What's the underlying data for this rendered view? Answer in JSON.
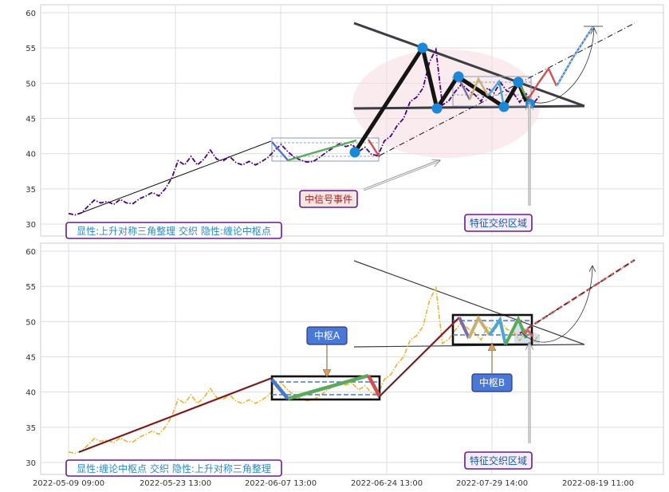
{
  "chart_data": [
    {
      "type": "line",
      "panel": "top",
      "ylim": [
        28,
        61
      ],
      "yticks": [
        30,
        35,
        40,
        45,
        50,
        55,
        60
      ],
      "grid": true,
      "price_series": {
        "color": "#4b0082",
        "values": [
          31.5,
          31.3,
          31.6,
          32.5,
          33.4,
          33.0,
          33.2,
          32.8,
          33.5,
          33.0,
          32.9,
          33.6,
          34.0,
          34.5,
          34.0,
          35.0,
          36.5,
          39.0,
          38.4,
          39.6,
          38.4,
          39.2,
          40.5,
          39.2,
          39.0,
          39.6,
          38.7,
          38.4,
          38.9,
          38.4,
          38.9,
          39.5,
          40.5,
          41.3,
          40.3,
          39.5,
          39.1,
          38.8,
          38.9,
          39.5,
          40.2,
          40.8,
          41.4,
          41.0,
          41.3,
          40.3,
          40.9,
          39.9,
          39.7,
          41.8,
          42.5,
          44.0,
          45.0,
          47.4,
          48.0,
          49.3,
          53.0,
          54.8,
          46.9,
          47.5,
          48.8,
          49.9,
          49.0,
          48.4,
          47.4,
          49.3,
          48.6,
          50.1,
          48.9,
          48.6,
          47.3,
          48.5,
          47.0,
          48.1
        ]
      },
      "annotations": {
        "signal_event": "中信号事件",
        "feature_zone": "特征交织区域",
        "caption": "显性:上升对称三角整理 交织 隐性:缠论中枢点"
      }
    },
    {
      "type": "line",
      "panel": "bottom",
      "ylim": [
        28,
        61
      ],
      "yticks": [
        30,
        35,
        40,
        45,
        50,
        55,
        60
      ],
      "grid": true,
      "price_series": {
        "color": "#f0b030",
        "values": [
          31.5,
          31.3,
          31.6,
          32.5,
          33.4,
          33.0,
          33.2,
          32.8,
          33.5,
          33.0,
          32.9,
          33.6,
          34.0,
          34.5,
          34.0,
          35.0,
          36.5,
          39.0,
          38.4,
          39.6,
          38.4,
          39.2,
          40.5,
          39.2,
          39.0,
          39.6,
          38.7,
          38.4,
          38.9,
          38.4,
          38.9,
          39.5,
          40.5,
          41.3,
          40.3,
          39.5,
          39.1,
          38.8,
          38.9,
          39.5,
          40.2,
          40.8,
          41.4,
          41.0,
          41.3,
          40.3,
          40.9,
          39.9,
          39.7,
          41.8,
          42.5,
          44.0,
          45.0,
          47.4,
          48.0,
          49.3,
          53.0,
          54.8,
          46.9,
          47.5,
          48.8,
          49.9,
          49.0,
          48.4,
          47.4,
          49.3,
          48.6,
          50.1,
          48.9,
          48.6,
          47.3,
          48.5,
          47.0,
          48.1
        ]
      },
      "annotations": {
        "pivot_a": "中枢A",
        "pivot_b": "中枢B",
        "feature_zone": "特征交织区域",
        "caption": "显性:缠论中枢点 交织 隐性:上升对称三角整理"
      }
    }
  ],
  "x_tick_labels": [
    "2022-05-09 09:00",
    "2022-05-23 13:00",
    "2022-06-07 13:00",
    "2022-06-24 13:00",
    "2022-07-29 14:00",
    "2022-08-19 11:00"
  ]
}
